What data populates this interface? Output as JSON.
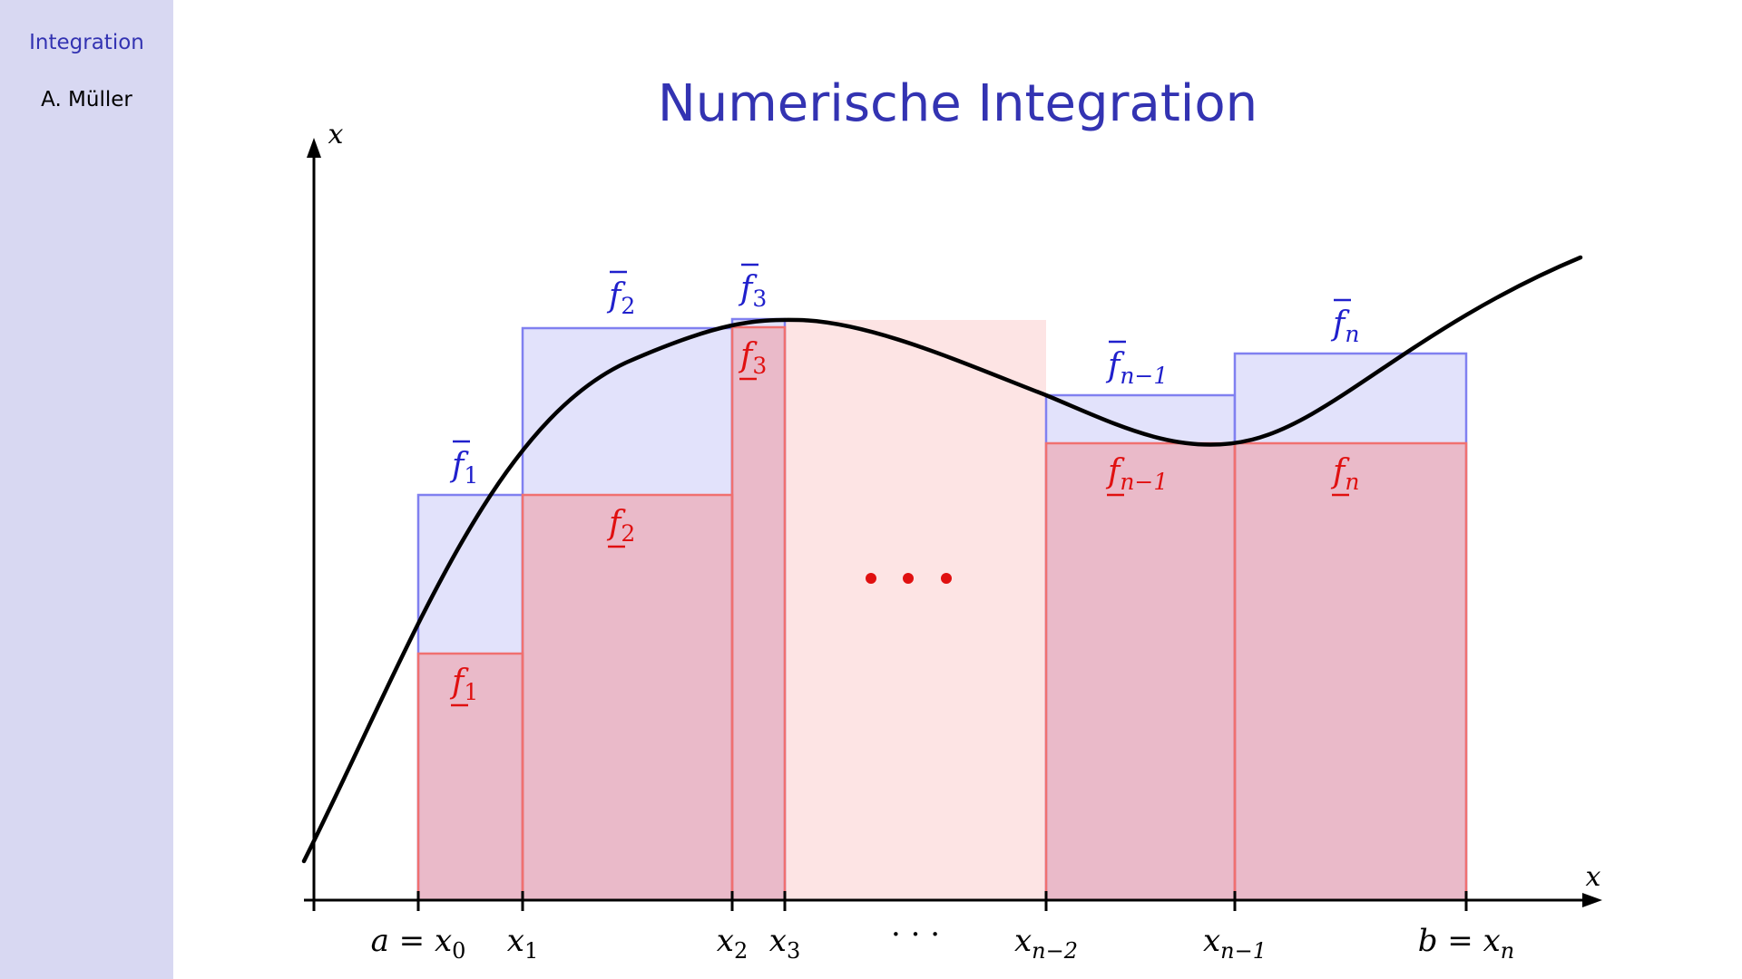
{
  "sidebar": {
    "section": "Integration",
    "author": "A. Müller"
  },
  "frame": {
    "title": "Numerische Integration"
  },
  "diagram": {
    "axis_labels": {
      "x_axis": "x",
      "y_axis": "x"
    },
    "tick_labels": [
      {
        "main": "a = x",
        "sub": "0"
      },
      {
        "main": "x",
        "sub": "1"
      },
      {
        "main": "x",
        "sub": "2"
      },
      {
        "main": "x",
        "sub": "3"
      },
      {
        "main": "· · ·",
        "sub": ""
      },
      {
        "main": "x",
        "sub": "n−2"
      },
      {
        "main": "x",
        "sub": "n−1"
      },
      {
        "main": "b = x",
        "sub": "n"
      }
    ],
    "upper_labels": [
      {
        "main": "f",
        "sub": "1"
      },
      {
        "main": "f",
        "sub": "2"
      },
      {
        "main": "f",
        "sub": "3"
      },
      {
        "main": "f",
        "sub": "n−1"
      },
      {
        "main": "f",
        "sub": "n"
      }
    ],
    "lower_labels": [
      {
        "main": "f",
        "sub": "1"
      },
      {
        "main": "f",
        "sub": "2"
      },
      {
        "main": "f",
        "sub": "3"
      },
      {
        "main": "f",
        "sub": "n−1"
      },
      {
        "main": "f",
        "sub": "n"
      }
    ],
    "colors": {
      "upper_fill": "#e2e2fb",
      "upper_stroke": "#8080f0",
      "upper_label": "#2020cc",
      "lower_fill": "#fccaca",
      "lower_stroke": "#f07070",
      "lower_label": "#e01010",
      "gap_fill": "#fde4e4",
      "dots": "#e01010"
    }
  }
}
